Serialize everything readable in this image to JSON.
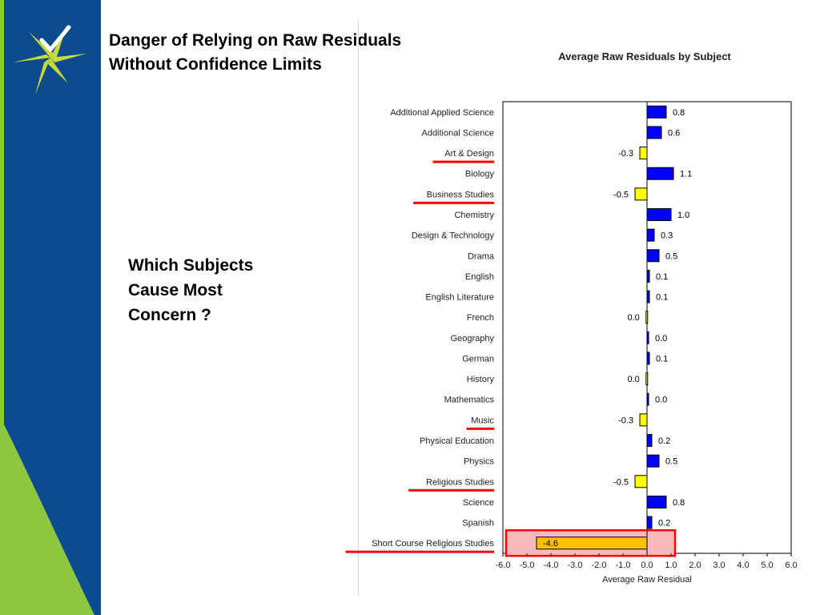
{
  "slide": {
    "title_line1": "Danger of Relying on Raw Residuals",
    "title_line2": "Without Confidence Limits",
    "question_line1": "Which Subjects",
    "question_line2": "Cause Most",
    "question_line3": "Concern ?"
  },
  "colors": {
    "sidebar": "#0c4b8e",
    "accent_green": "#8dc63f",
    "logo_star": "#c7da3a",
    "positive_bar": "#0000ff",
    "negative_bar": "#ffff00",
    "highlight_bar": "#ffc000",
    "highlight_fill": "#f9b9b9",
    "highlight_border": "#ff0000",
    "underline": "#ff0000"
  },
  "chart_data": {
    "type": "bar",
    "orientation": "horizontal",
    "title": "Average Raw Residuals by Subject",
    "xlabel": "Average Raw Residual",
    "ylabel": "",
    "xlim": [
      -6.0,
      6.0
    ],
    "xticks": [
      "-6.0",
      "-5.0",
      "-4.0",
      "-3.0",
      "-2.0",
      "-1.0",
      "0.0",
      "1.0",
      "2.0",
      "3.0",
      "4.0",
      "5.0",
      "6.0"
    ],
    "grid": false,
    "legend": "none",
    "categories": [
      "Additional Applied Science",
      "Additional Science",
      "Art & Design",
      "Biology",
      "Business Studies",
      "Chemistry",
      "Design & Technology",
      "Drama",
      "English",
      "English Literature",
      "French",
      "Geography",
      "German",
      "History",
      "Mathematics",
      "Music",
      "Physical Education",
      "Physics",
      "Religious Studies",
      "Science",
      "Spanish",
      "Short Course Religious Studies"
    ],
    "values": [
      0.8,
      0.6,
      -0.3,
      1.1,
      -0.5,
      1.0,
      0.3,
      0.5,
      0.1,
      0.1,
      -0.04,
      0.04,
      0.1,
      -0.04,
      0.04,
      -0.3,
      0.2,
      0.5,
      -0.5,
      0.8,
      0.2,
      -4.6
    ],
    "value_labels": [
      "0.8",
      "0.6",
      "-0.3",
      "1.1",
      "-0.5",
      "1.0",
      "0.3",
      "0.5",
      "0.1",
      "0.1",
      "0.0",
      "0.0",
      "0.1",
      "0.0",
      "0.0",
      "-0.3",
      "0.2",
      "0.5",
      "-0.5",
      "0.8",
      "0.2",
      "-4.6"
    ],
    "underlined_categories": [
      "Art & Design",
      "Business Studies",
      "Music",
      "Religious Studies",
      "Short Course Religious Studies"
    ],
    "highlighted_category": "Short Course Religious Studies"
  }
}
